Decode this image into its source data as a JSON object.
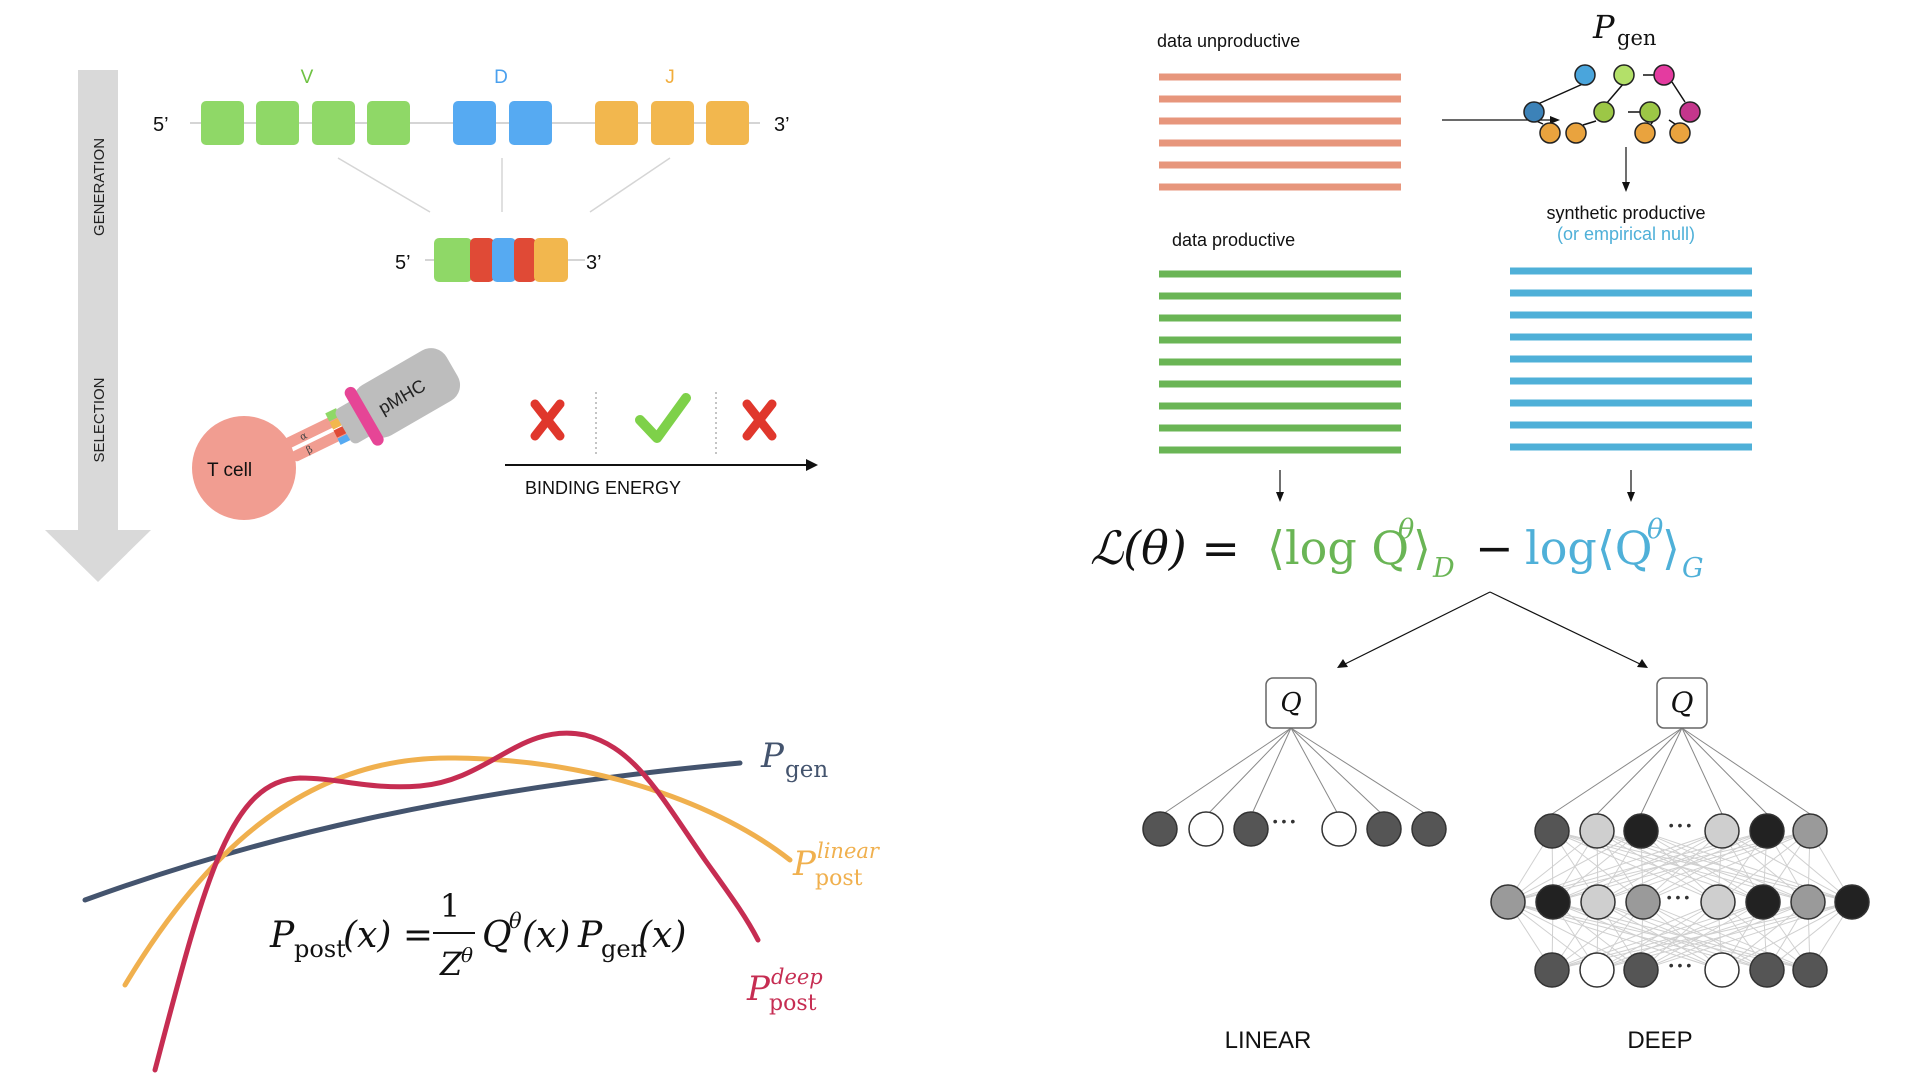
{
  "generation": {
    "arrow_label_top": "GENERATION",
    "arrow_label_bottom": "SELECTION",
    "segment_letters": {
      "v": "V",
      "d": "D",
      "j": "J"
    },
    "five_prime": "5’",
    "three_prime": "3’",
    "colors": {
      "v": "#8fd867",
      "d": "#56aaf2",
      "j": "#f2b74e",
      "insert": "#e04a36"
    }
  },
  "selection": {
    "tcell_label": "T cell",
    "pmhc_label": "pMHC",
    "alpha": "α",
    "beta": "β",
    "axis_label": "BINDING ENERGY"
  },
  "distributions": {
    "pgen": {
      "main": "P",
      "sub": "gen"
    },
    "linear": {
      "main": "P",
      "sup": "linear",
      "sub": "post"
    },
    "deep": {
      "main": "P",
      "sup": "deep",
      "sub": "post"
    },
    "equation": {
      "lhs_main": "P",
      "lhs_sub": "post",
      "lhs_arg": "(x) =",
      "frac_num": "1",
      "frac_den": "Z",
      "frac_den_sup": "θ",
      "q": "Q",
      "q_sup": "θ",
      "q_arg": "(x)",
      "p": "P",
      "p_sub": "gen",
      "p_arg": "(x)"
    },
    "colors": {
      "pgen": "#44546e",
      "linear": "#f0b04e",
      "deep": "#c62d52"
    }
  },
  "data_panel": {
    "unproductive_label": "data unproductive",
    "productive_label": "data productive",
    "synthetic_label": "synthetic productive",
    "synthetic_sub": "(or empirical null)",
    "model_main": "P",
    "model_sub": "gen",
    "colors": {
      "unproductive": "#e7967c",
      "productive": "#6ab555",
      "synthetic": "#4fb0d8"
    }
  },
  "loss": {
    "lhs": "ℒ(θ) =",
    "term1": "⟨log Q",
    "term1_sup": "θ",
    "term1_close": "⟩",
    "term1_sub": "D",
    "minus": "−",
    "term2": "log⟨Q",
    "term2_sup": "θ",
    "term2_close": "⟩",
    "term2_sub": "G"
  },
  "networks": {
    "node_label": "Q",
    "linear_label": "LINEAR",
    "deep_label": "DEEP",
    "ellipsis": "• • •"
  }
}
